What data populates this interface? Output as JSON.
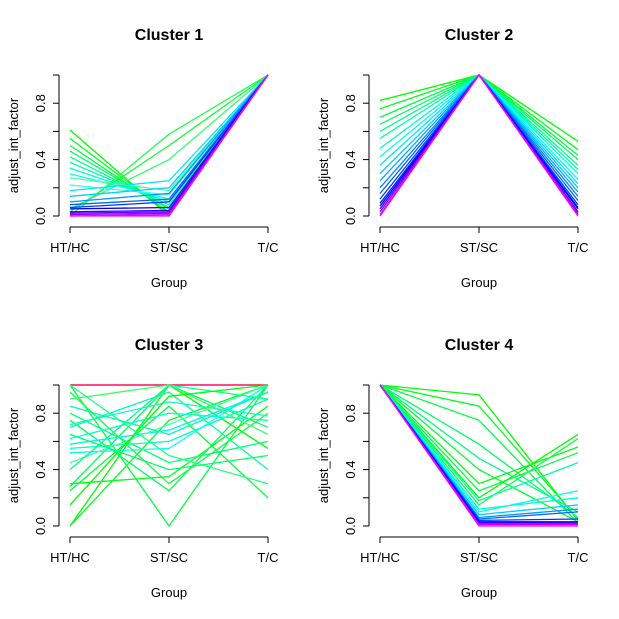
{
  "chart_data": [
    {
      "type": "line",
      "title": "Cluster 1",
      "xlabel": "Group",
      "ylabel": "adjust_int_factor",
      "categories": [
        "HT/HC",
        "ST/SC",
        "T/C"
      ],
      "ylim": [
        0,
        1
      ],
      "yticks": [
        "0.0",
        "0.4",
        "0.8"
      ],
      "series": [
        {
          "color": "#00ff00",
          "values": [
            0.61,
            0.0,
            1.0
          ]
        },
        {
          "color": "#00ff22",
          "values": [
            0.55,
            0.02,
            1.0
          ]
        },
        {
          "color": "#00ff44",
          "values": [
            0.5,
            0.03,
            1.0
          ]
        },
        {
          "color": "#00ff66",
          "values": [
            0.46,
            0.05,
            1.0
          ]
        },
        {
          "color": "#00ff88",
          "values": [
            0.42,
            0.06,
            1.0
          ]
        },
        {
          "color": "#00ffaa",
          "values": [
            0.38,
            0.08,
            1.0
          ]
        },
        {
          "color": "#00ffcc",
          "values": [
            0.34,
            0.1,
            1.0
          ]
        },
        {
          "color": "#00ffee",
          "values": [
            0.3,
            0.12,
            1.0
          ]
        },
        {
          "color": "#22ff55",
          "values": [
            0.0,
            0.58,
            1.0
          ]
        },
        {
          "color": "#11ff33",
          "values": [
            0.03,
            0.5,
            1.0
          ]
        },
        {
          "color": "#33ff77",
          "values": [
            0.05,
            0.4,
            1.0
          ]
        },
        {
          "color": "#44ffaa",
          "values": [
            0.27,
            0.18,
            1.0
          ]
        },
        {
          "color": "#33ffdd",
          "values": [
            0.22,
            0.15,
            1.0
          ]
        },
        {
          "color": "#00e6ff",
          "values": [
            0.18,
            0.25,
            1.0
          ]
        },
        {
          "color": "#00ccff",
          "values": [
            0.14,
            0.2,
            1.0
          ]
        },
        {
          "color": "#0099ff",
          "values": [
            0.1,
            0.16,
            1.0
          ]
        },
        {
          "color": "#0066ff",
          "values": [
            0.08,
            0.12,
            1.0
          ]
        },
        {
          "color": "#0033ff",
          "values": [
            0.06,
            0.1,
            1.0
          ]
        },
        {
          "color": "#0000ff",
          "values": [
            0.05,
            0.06,
            1.0
          ]
        },
        {
          "color": "#3300ff",
          "values": [
            0.03,
            0.04,
            1.0
          ]
        },
        {
          "color": "#6600ff",
          "values": [
            0.02,
            0.03,
            1.0
          ]
        },
        {
          "color": "#9900ff",
          "values": [
            0.01,
            0.02,
            1.0
          ]
        },
        {
          "color": "#cc00ff",
          "values": [
            0.0,
            0.01,
            1.0
          ]
        },
        {
          "color": "#ff00ff",
          "values": [
            0.0,
            0.0,
            1.0
          ]
        }
      ]
    },
    {
      "type": "line",
      "title": "Cluster 2",
      "xlabel": "Group",
      "ylabel": "adjust_int_factor",
      "categories": [
        "HT/HC",
        "ST/SC",
        "T/C"
      ],
      "ylim": [
        0,
        1
      ],
      "yticks": [
        "0.0",
        "0.4",
        "0.8"
      ],
      "series": [
        {
          "color": "#00ff00",
          "values": [
            0.82,
            1.0,
            0.53
          ]
        },
        {
          "color": "#00ff22",
          "values": [
            0.76,
            1.0,
            0.47
          ]
        },
        {
          "color": "#00ff44",
          "values": [
            0.7,
            1.0,
            0.43
          ]
        },
        {
          "color": "#00ff66",
          "values": [
            0.65,
            1.0,
            0.4
          ]
        },
        {
          "color": "#00ff88",
          "values": [
            0.6,
            1.0,
            0.36
          ]
        },
        {
          "color": "#00ffaa",
          "values": [
            0.55,
            1.0,
            0.33
          ]
        },
        {
          "color": "#00ffcc",
          "values": [
            0.48,
            1.0,
            0.3
          ]
        },
        {
          "color": "#00ffee",
          "values": [
            0.42,
            1.0,
            0.26
          ]
        },
        {
          "color": "#00e6ff",
          "values": [
            0.36,
            1.0,
            0.23
          ]
        },
        {
          "color": "#00ccff",
          "values": [
            0.3,
            1.0,
            0.2
          ]
        },
        {
          "color": "#00aaff",
          "values": [
            0.25,
            1.0,
            0.17
          ]
        },
        {
          "color": "#0088ff",
          "values": [
            0.2,
            1.0,
            0.14
          ]
        },
        {
          "color": "#0066ff",
          "values": [
            0.16,
            1.0,
            0.11
          ]
        },
        {
          "color": "#0044ff",
          "values": [
            0.12,
            1.0,
            0.08
          ]
        },
        {
          "color": "#0022ff",
          "values": [
            0.09,
            1.0,
            0.06
          ]
        },
        {
          "color": "#0000ff",
          "values": [
            0.07,
            1.0,
            0.05
          ]
        },
        {
          "color": "#4400ff",
          "values": [
            0.05,
            1.0,
            0.03
          ]
        },
        {
          "color": "#8800ff",
          "values": [
            0.03,
            1.0,
            0.02
          ]
        },
        {
          "color": "#cc00ff",
          "values": [
            0.01,
            1.0,
            0.01
          ]
        },
        {
          "color": "#ff00ff",
          "values": [
            0.0,
            1.0,
            0.0
          ]
        }
      ]
    },
    {
      "type": "line",
      "title": "Cluster 3",
      "xlabel": "Group",
      "ylabel": "adjust_int_factor",
      "categories": [
        "HT/HC",
        "ST/SC",
        "T/C"
      ],
      "ylim": [
        0,
        1
      ],
      "yticks": [
        "0.0",
        "0.4",
        "0.8"
      ],
      "series": [
        {
          "color": "#ff0000",
          "values": [
            1.0,
            1.0,
            1.0
          ]
        },
        {
          "color": "#ff0066",
          "values": [
            1.0,
            1.0,
            1.0
          ]
        },
        {
          "color": "#00ff00",
          "values": [
            0.0,
            1.0,
            0.55
          ]
        },
        {
          "color": "#00ff22",
          "values": [
            0.0,
            0.75,
            1.0
          ]
        },
        {
          "color": "#00ff44",
          "values": [
            1.0,
            0.0,
            1.0
          ]
        },
        {
          "color": "#00ff66",
          "values": [
            0.28,
            1.0,
            0.7
          ]
        },
        {
          "color": "#00ff33",
          "values": [
            0.25,
            0.85,
            0.2
          ]
        },
        {
          "color": "#00ff11",
          "values": [
            0.3,
            0.35,
            0.85
          ]
        },
        {
          "color": "#00ff55",
          "values": [
            0.75,
            0.25,
            1.0
          ]
        },
        {
          "color": "#00ff77",
          "values": [
            0.8,
            0.45,
            0.6
          ]
        },
        {
          "color": "#00ff99",
          "values": [
            0.7,
            0.95,
            0.4
          ]
        },
        {
          "color": "#00ffbb",
          "values": [
            0.55,
            0.6,
            0.9
          ]
        },
        {
          "color": "#00ffdd",
          "values": [
            0.62,
            0.8,
            0.75
          ]
        },
        {
          "color": "#00ffff",
          "values": [
            0.52,
            0.55,
            1.0
          ]
        },
        {
          "color": "#00eeff",
          "values": [
            0.58,
            0.68,
            0.95
          ]
        },
        {
          "color": "#22ff88",
          "values": [
            1.0,
            0.5,
            0.3
          ]
        },
        {
          "color": "#11ff44",
          "values": [
            0.95,
            0.3,
            0.8
          ]
        },
        {
          "color": "#33ff66",
          "values": [
            0.9,
            1.0,
            0.65
          ]
        },
        {
          "color": "#44ffaa",
          "values": [
            0.45,
            0.72,
            1.0
          ]
        },
        {
          "color": "#00ff88",
          "values": [
            0.4,
            1.0,
            0.9
          ]
        },
        {
          "color": "#00ffcc",
          "values": [
            0.72,
            0.88,
            0.78
          ]
        },
        {
          "color": "#00ff00",
          "values": [
            0.15,
            0.92,
            1.0
          ]
        },
        {
          "color": "#00ff66",
          "values": [
            0.65,
            0.4,
            0.5
          ]
        },
        {
          "color": "#00ffaa",
          "values": [
            0.85,
            0.65,
            0.95
          ]
        }
      ]
    },
    {
      "type": "line",
      "title": "Cluster 4",
      "xlabel": "Group",
      "ylabel": "adjust_int_factor",
      "categories": [
        "HT/HC",
        "ST/SC",
        "T/C"
      ],
      "ylim": [
        0,
        1
      ],
      "yticks": [
        "0.0",
        "0.4",
        "0.8"
      ],
      "series": [
        {
          "color": "#00ff00",
          "values": [
            1.0,
            0.93,
            0.04
          ]
        },
        {
          "color": "#00ff22",
          "values": [
            1.0,
            0.85,
            0.05
          ]
        },
        {
          "color": "#00ff44",
          "values": [
            1.0,
            0.75,
            0.02
          ]
        },
        {
          "color": "#00ff66",
          "values": [
            1.0,
            0.58,
            0.06
          ]
        },
        {
          "color": "#00ff88",
          "values": [
            1.0,
            0.48,
            0.1
          ]
        },
        {
          "color": "#00ff33",
          "values": [
            1.0,
            0.4,
            0.03
          ]
        },
        {
          "color": "#00ff11",
          "values": [
            1.0,
            0.3,
            0.56
          ]
        },
        {
          "color": "#00ff55",
          "values": [
            1.0,
            0.25,
            0.52
          ]
        },
        {
          "color": "#00ff00",
          "values": [
            1.0,
            0.2,
            0.65
          ]
        },
        {
          "color": "#11ff44",
          "values": [
            1.0,
            0.15,
            0.62
          ]
        },
        {
          "color": "#00ffaa",
          "values": [
            1.0,
            0.18,
            0.45
          ]
        },
        {
          "color": "#00ffcc",
          "values": [
            1.0,
            0.12,
            0.2
          ]
        },
        {
          "color": "#00ffee",
          "values": [
            1.0,
            0.1,
            0.25
          ]
        },
        {
          "color": "#00ccff",
          "values": [
            1.0,
            0.08,
            0.15
          ]
        },
        {
          "color": "#0099ff",
          "values": [
            1.0,
            0.06,
            0.12
          ]
        },
        {
          "color": "#0066ff",
          "values": [
            1.0,
            0.05,
            0.1
          ]
        },
        {
          "color": "#0033ff",
          "values": [
            1.0,
            0.04,
            0.05
          ]
        },
        {
          "color": "#0000ff",
          "values": [
            1.0,
            0.03,
            0.03
          ]
        },
        {
          "color": "#6600ff",
          "values": [
            1.0,
            0.02,
            0.02
          ]
        },
        {
          "color": "#cc00ff",
          "values": [
            1.0,
            0.01,
            0.01
          ]
        },
        {
          "color": "#ff00ff",
          "values": [
            1.0,
            0.0,
            0.0
          ]
        }
      ]
    }
  ]
}
